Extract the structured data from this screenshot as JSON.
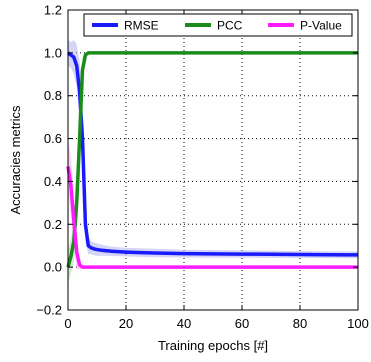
{
  "chart_data": {
    "type": "line",
    "title": "",
    "xlabel": "Training epochs [#]",
    "ylabel": "Accuracies metrics",
    "xlim": [
      0,
      100
    ],
    "ylim": [
      -0.2,
      1.2
    ],
    "x_ticks": [
      "0",
      "20",
      "40",
      "60",
      "80",
      "100"
    ],
    "y_ticks": [
      "−0.2",
      "0.0",
      "0.2",
      "0.4",
      "0.6",
      "0.8",
      "1.0",
      "1.2"
    ],
    "grid": true,
    "legend_position": "top",
    "series": [
      {
        "name": "RMSE",
        "color": "#1a1aff",
        "band_color": "#b3b3f0",
        "x": [
          0,
          1,
          2,
          3,
          4,
          5,
          6,
          7,
          8,
          9,
          10,
          12,
          15,
          20,
          25,
          30,
          40,
          50,
          60,
          70,
          80,
          90,
          100
        ],
        "y": [
          1.0,
          0.99,
          0.98,
          0.94,
          0.82,
          0.6,
          0.2,
          0.1,
          0.09,
          0.085,
          0.082,
          0.078,
          0.074,
          0.07,
          0.068,
          0.066,
          0.063,
          0.062,
          0.061,
          0.06,
          0.059,
          0.058,
          0.057
        ],
        "band": [
          0.06,
          0.06,
          0.08,
          0.1,
          0.14,
          0.16,
          0.08,
          0.04,
          0.03,
          0.03,
          0.03,
          0.025,
          0.022,
          0.02,
          0.02,
          0.02,
          0.018,
          0.018,
          0.017,
          0.017,
          0.016,
          0.016,
          0.016
        ]
      },
      {
        "name": "PCC",
        "color": "#1a8c1a",
        "band_color": "#b3d9b3",
        "x": [
          0,
          1,
          2,
          3,
          4,
          5,
          6,
          7,
          8,
          10,
          15,
          20,
          30,
          40,
          50,
          60,
          70,
          80,
          90,
          100
        ],
        "y": [
          0.0,
          0.05,
          0.12,
          0.3,
          0.6,
          0.92,
          0.99,
          1.0,
          1.0,
          1.0,
          1.0,
          1.0,
          1.0,
          1.0,
          1.0,
          1.0,
          1.0,
          1.0,
          1.0,
          1.0
        ],
        "band": [
          0.08,
          0.08,
          0.1,
          0.16,
          0.2,
          0.06,
          0.01,
          0.004,
          0.003,
          0.003,
          0.003,
          0.003,
          0.003,
          0.003,
          0.003,
          0.003,
          0.003,
          0.003,
          0.003,
          0.003
        ]
      },
      {
        "name": "P-Value",
        "color": "#ff1aff",
        "band_color": "#f0b3f0",
        "x": [
          0,
          1,
          2,
          3,
          4,
          5,
          6,
          8,
          10,
          20,
          40,
          60,
          80,
          100
        ],
        "y": [
          0.47,
          0.38,
          0.22,
          0.07,
          0.01,
          0.0,
          0.0,
          0.0,
          0.0,
          0.0,
          0.0,
          0.0,
          0.0,
          0.0
        ],
        "band": [
          0.12,
          0.14,
          0.12,
          0.08,
          0.02,
          0.005,
          0.003,
          0.003,
          0.003,
          0.003,
          0.003,
          0.003,
          0.003,
          0.003
        ]
      }
    ]
  }
}
